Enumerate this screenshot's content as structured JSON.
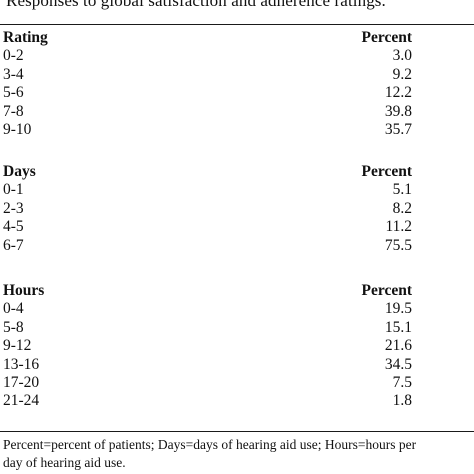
{
  "caption": "Responses to global satisfaction and adherence ratings.",
  "sections": [
    {
      "header": "Rating",
      "value_header": "Percent",
      "rows": [
        {
          "label": "0-2",
          "value": "3.0"
        },
        {
          "label": "3-4",
          "value": "9.2"
        },
        {
          "label": "5-6",
          "value": "12.2"
        },
        {
          "label": "7-8",
          "value": "39.8"
        },
        {
          "label": "9-10",
          "value": "35.7"
        }
      ]
    },
    {
      "header": "Days",
      "value_header": "Percent",
      "rows": [
        {
          "label": "0-1",
          "value": "5.1"
        },
        {
          "label": "2-3",
          "value": "8.2"
        },
        {
          "label": "4-5",
          "value": "11.2"
        },
        {
          "label": "6-7",
          "value": "75.5"
        }
      ]
    },
    {
      "header": "Hours",
      "value_header": "Percent",
      "rows": [
        {
          "label": "0-4",
          "value": "19.5"
        },
        {
          "label": "5-8",
          "value": "15.1"
        },
        {
          "label": "9-12",
          "value": "21.6"
        },
        {
          "label": "13-16",
          "value": "34.5"
        },
        {
          "label": "17-20",
          "value": "7.5"
        },
        {
          "label": "21-24",
          "value": "1.8"
        }
      ]
    }
  ],
  "footnote": {
    "line1": "Percent=percent of patients; Days=days of hearing aid use; Hours=hours per",
    "line2": "day of hearing aid use."
  }
}
